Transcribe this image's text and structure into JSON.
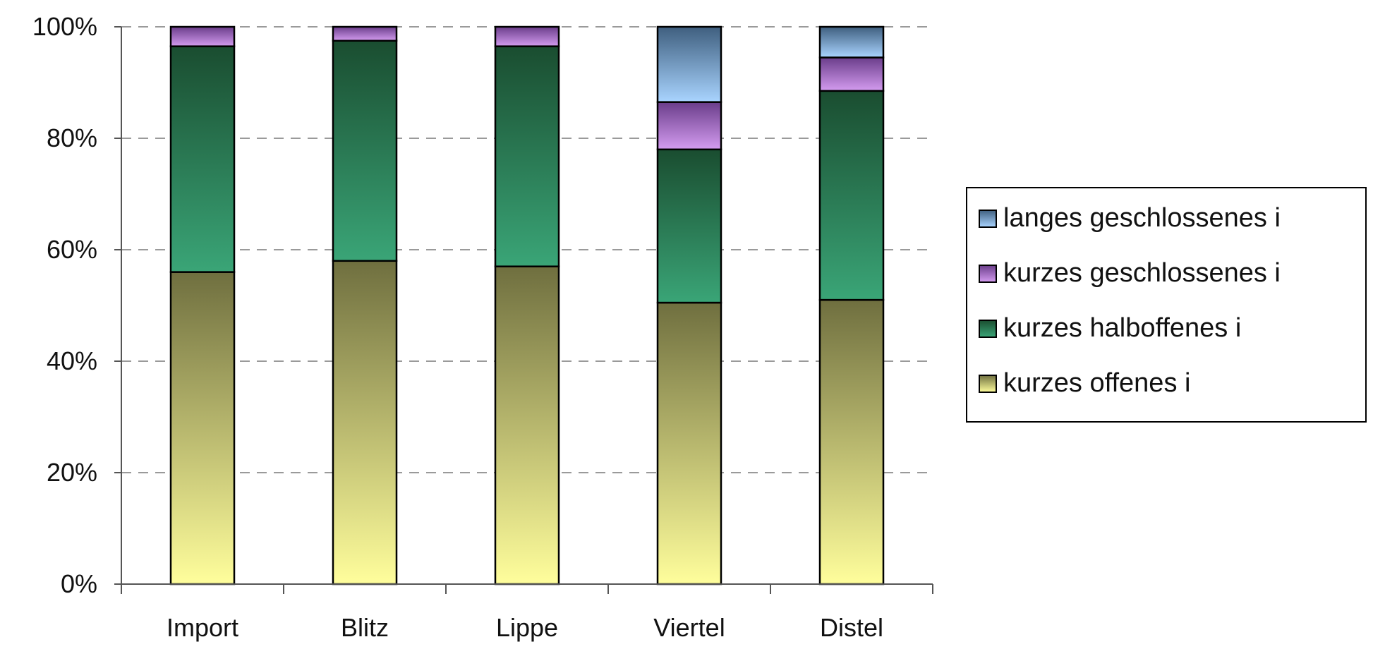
{
  "chart_data": {
    "type": "bar",
    "stacked": true,
    "percent": true,
    "categories": [
      "Import",
      "Blitz",
      "Lippe",
      "Viertel",
      "Distel"
    ],
    "series": [
      {
        "name": "kurzes offenes i",
        "values": [
          56,
          58,
          57,
          50.5,
          51
        ],
        "color_top": "#6f6f3f",
        "color_bottom": "#fffe9c"
      },
      {
        "name": "kurzes halboffenes i",
        "values": [
          40.5,
          39.5,
          39.5,
          27.5,
          37.5
        ],
        "color_top": "#1a4d30",
        "color_bottom": "#3aa577"
      },
      {
        "name": "kurzes geschlossenes i",
        "values": [
          3.5,
          2.5,
          3.5,
          8.5,
          6
        ],
        "color_top": "#6a3d8a",
        "color_bottom": "#d49cf0"
      },
      {
        "name": "langes geschlossenes i",
        "values": [
          0,
          0,
          0,
          13.5,
          5.5
        ],
        "color_top": "#3f5f7f",
        "color_bottom": "#a9d4ff"
      }
    ],
    "ylim": [
      0,
      100
    ],
    "yticks": [
      "0%",
      "20%",
      "40%",
      "60%",
      "80%",
      "100%"
    ],
    "grid": "dashed",
    "legend_position": "right",
    "legend_order": [
      "langes geschlossenes i",
      "kurzes geschlossenes i",
      "kurzes halboffenes i",
      "kurzes offenes i"
    ]
  }
}
